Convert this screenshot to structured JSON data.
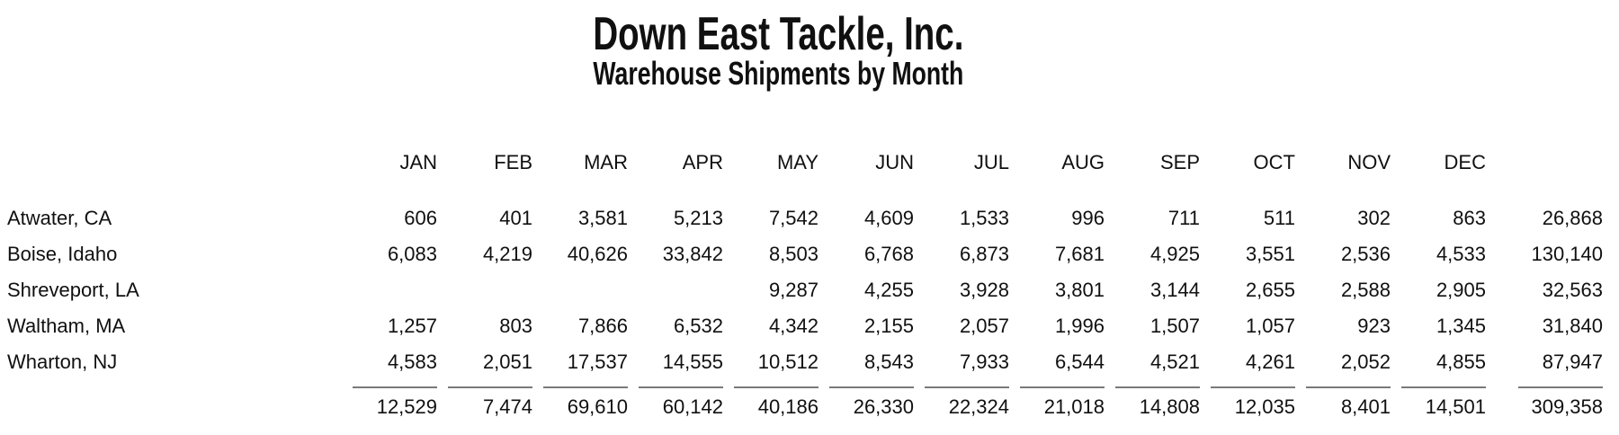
{
  "report": {
    "title": "Down East Tackle, Inc.",
    "subtitle": "Warehouse Shipments by Month"
  },
  "table": {
    "month_headers": [
      "JAN",
      "FEB",
      "MAR",
      "APR",
      "MAY",
      "JUN",
      "JUL",
      "AUG",
      "SEP",
      "OCT",
      "NOV",
      "DEC"
    ],
    "rows": [
      {
        "label": "Atwater, CA",
        "values": [
          "606",
          "401",
          "3,581",
          "5,213",
          "7,542",
          "4,609",
          "1,533",
          "996",
          "711",
          "511",
          "302",
          "863"
        ],
        "total": "26,868"
      },
      {
        "label": "Boise, Idaho",
        "values": [
          "6,083",
          "4,219",
          "40,626",
          "33,842",
          "8,503",
          "6,768",
          "6,873",
          "7,681",
          "4,925",
          "3,551",
          "2,536",
          "4,533"
        ],
        "total": "130,140"
      },
      {
        "label": "Shreveport, LA",
        "values": [
          "",
          "",
          "",
          "",
          "9,287",
          "4,255",
          "3,928",
          "3,801",
          "3,144",
          "2,655",
          "2,588",
          "2,905"
        ],
        "total": "32,563"
      },
      {
        "label": "Waltham, MA",
        "values": [
          "1,257",
          "803",
          "7,866",
          "6,532",
          "4,342",
          "2,155",
          "2,057",
          "1,996",
          "1,507",
          "1,057",
          "923",
          "1,345"
        ],
        "total": "31,840"
      },
      {
        "label": "Wharton, NJ",
        "values": [
          "4,583",
          "2,051",
          "17,537",
          "14,555",
          "10,512",
          "8,543",
          "7,933",
          "6,544",
          "4,521",
          "4,261",
          "2,052",
          "4,855"
        ],
        "total": "87,947"
      }
    ],
    "totals_row": {
      "values": [
        "12,529",
        "7,474",
        "69,610",
        "60,142",
        "40,186",
        "26,330",
        "22,324",
        "21,018",
        "14,808",
        "12,035",
        "8,401",
        "14,501"
      ],
      "total": "309,358"
    }
  },
  "colors": {
    "background": "#ffffff",
    "text": "#101010",
    "total_rule": "#7a7a7a"
  }
}
